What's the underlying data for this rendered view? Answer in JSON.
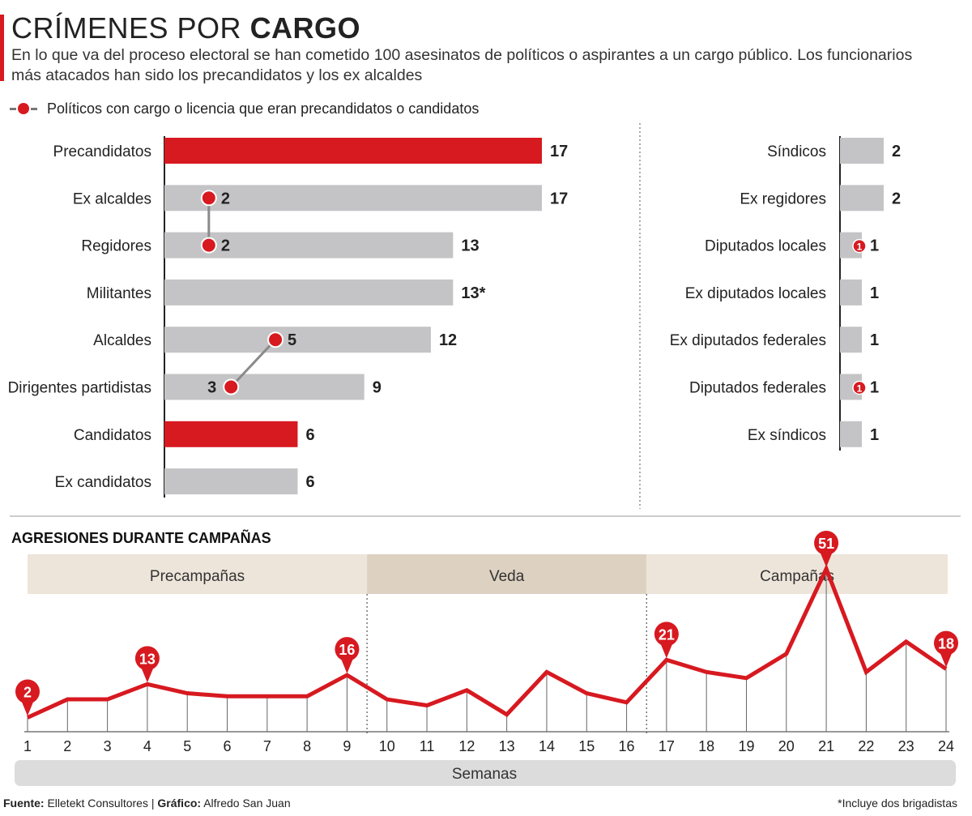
{
  "header": {
    "title_light": "CRÍMENES POR",
    "title_bold": "CARGO",
    "subtitle": "En lo que va del proceso electoral se han cometido 100 asesinatos de políticos o aspirantes a un cargo público. Los funcionarios más atacados han sido los precandidatos y los ex alcaldes"
  },
  "legend": {
    "label": "Políticos con cargo o licencia que eran precandidatos o candidatos"
  },
  "colors": {
    "red": "#d71920",
    "gray": "#c4c4c6",
    "line_gray": "#888888",
    "band_light": "#ede5da",
    "band_dark": "#ddd1c1",
    "axis_band": "#dcdcdc"
  },
  "chart_data": [
    {
      "type": "bar",
      "orientation": "horizontal",
      "categories": [
        "Precandidatos",
        "Ex alcaldes",
        "Regidores",
        "Militantes",
        "Alcaldes",
        "Dirigentes partidistas",
        "Candidatos",
        "Ex candidatos"
      ],
      "values": [
        17,
        17,
        13,
        13,
        12,
        9,
        6,
        6
      ],
      "value_labels": [
        "17",
        "17",
        "13",
        "13*",
        "12",
        "9",
        "6",
        "6"
      ],
      "highlight": [
        "Precandidatos",
        "Candidatos"
      ],
      "markers": [
        {
          "category": "Ex alcaldes",
          "value": 2,
          "label": "2"
        },
        {
          "category": "Regidores",
          "value": 2,
          "label": "2"
        },
        {
          "category": "Alcaldes",
          "value": 5,
          "label": "5"
        },
        {
          "category": "Dirigentes partidistas",
          "value": 3,
          "label": "3"
        }
      ],
      "links": [
        [
          "Ex alcaldes",
          "Regidores"
        ],
        [
          "Alcaldes",
          "Dirigentes partidistas"
        ]
      ]
    },
    {
      "type": "bar",
      "orientation": "horizontal",
      "categories": [
        "Síndicos",
        "Ex regidores",
        "Diputados locales",
        "Ex diputados locales",
        "Ex diputados federales",
        "Diputados federales",
        "Ex síndicos"
      ],
      "values": [
        2,
        2,
        1,
        1,
        1,
        1,
        1
      ],
      "value_labels": [
        "2",
        "2",
        "1",
        "1",
        "1",
        "1",
        "1"
      ],
      "markers": [
        {
          "category": "Diputados locales",
          "value": 1,
          "label": "1"
        },
        {
          "category": "Diputados federales",
          "value": 1,
          "label": "1"
        }
      ]
    },
    {
      "type": "line",
      "title": "AGRESIONES DURANTE CAMPAÑAS",
      "xlabel": "Semanas",
      "x": [
        1,
        2,
        3,
        4,
        5,
        6,
        7,
        8,
        9,
        10,
        11,
        12,
        13,
        14,
        15,
        16,
        17,
        18,
        19,
        20,
        21,
        22,
        23,
        24
      ],
      "values": [
        2,
        8,
        8,
        13,
        10,
        9,
        9,
        9,
        16,
        8,
        6,
        11,
        3,
        17,
        10,
        7,
        21,
        17,
        15,
        23,
        51,
        17,
        27,
        18
      ],
      "ylim": [
        0,
        51
      ],
      "labeled_points": [
        {
          "x": 1,
          "label": "2"
        },
        {
          "x": 4,
          "label": "13"
        },
        {
          "x": 9,
          "label": "16"
        },
        {
          "x": 17,
          "label": "21"
        },
        {
          "x": 21,
          "label": "51"
        },
        {
          "x": 24,
          "label": "18"
        }
      ],
      "phases": [
        {
          "label": "Precampañas",
          "from": 1,
          "to": 9.5
        },
        {
          "label": "Veda",
          "from": 9.5,
          "to": 16.5
        },
        {
          "label": "Campañas",
          "from": 16.5,
          "to": 24
        }
      ]
    }
  ],
  "footer": {
    "source_label": "Fuente:",
    "source": "Elletekt Consultores",
    "separator": "|",
    "graphic_label": "Gráfico:",
    "graphic": "Alfredo San Juan",
    "footnote": "*Incluye dos brigadistas"
  }
}
